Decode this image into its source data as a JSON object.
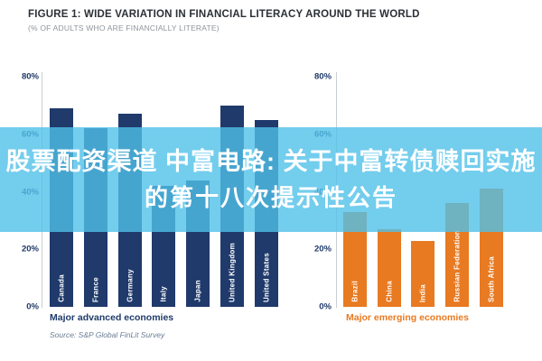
{
  "figure": {
    "title": "FIGURE 1: WIDE VARIATION IN FINANCIAL LITERACY AROUND THE WORLD",
    "subtitle": "(% OF ADULTS WHO ARE FINANCIALLY LITERATE)",
    "source": "Source: S&P Global FinLit Survey"
  },
  "overlay": {
    "line1": "股票配资渠道 中富电路: 关于中富转债赎回实施",
    "line2": "的第十八次提示性公告",
    "background_color": "#50C0E8",
    "text_color": "#FFFFFF"
  },
  "chart_data": [
    {
      "type": "bar",
      "title": "Major advanced economies",
      "categories": [
        "Canada",
        "France",
        "Germany",
        "Italy",
        "Japan",
        "United Kingdom",
        "United States"
      ],
      "values": [
        69,
        62,
        67,
        42,
        44,
        70,
        65
      ],
      "bar_color": "#1F3A6B",
      "title_color": "#1F3A6B",
      "tick_color": "#1F3A6B",
      "ylabel": "",
      "ylim": [
        0,
        80
      ],
      "ytick_labels": [
        "80%",
        "60%",
        "40%",
        "20%",
        "0%"
      ],
      "ytick_values": [
        80,
        60,
        40,
        20,
        0
      ],
      "grid": false,
      "legend": "none"
    },
    {
      "type": "bar",
      "title": "Major emerging economies",
      "categories": [
        "Brazil",
        "China",
        "India",
        "Russian Federation",
        "South Africa"
      ],
      "values": [
        33,
        27,
        23,
        36,
        41
      ],
      "bar_color": "#E87A22",
      "title_color": "#E87A22",
      "tick_color": "#1F3A6B",
      "ylabel": "",
      "ylim": [
        0,
        80
      ],
      "ytick_labels": [
        "80%",
        "60%",
        "40%",
        "20%",
        "0%"
      ],
      "ytick_values": [
        80,
        60,
        40,
        20,
        0
      ],
      "grid": false,
      "legend": "none"
    }
  ]
}
